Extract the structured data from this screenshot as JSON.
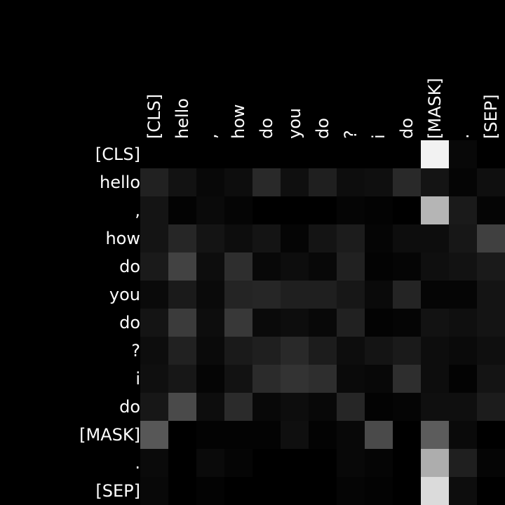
{
  "chart_data": {
    "type": "heatmap",
    "x_tokens": [
      "[CLS]",
      "hello",
      ",",
      "how",
      "do",
      "you",
      "do",
      "?",
      "i",
      "do",
      "[MASK]",
      ".",
      "[SEP]"
    ],
    "y_tokens": [
      "[CLS]",
      "hello",
      ",",
      "how",
      "do",
      "you",
      "do",
      "?",
      "i",
      "do",
      "[MASK]",
      ".",
      "[SEP]"
    ],
    "value_range": [
      0,
      1
    ],
    "colormap": "grayscale",
    "grid": false,
    "values": [
      [
        0.0,
        0.0,
        0.0,
        0.0,
        0.0,
        0.0,
        0.0,
        0.0,
        0.0,
        0.0,
        0.95,
        0.03,
        0.0
      ],
      [
        0.13,
        0.07,
        0.03,
        0.05,
        0.16,
        0.06,
        0.12,
        0.05,
        0.06,
        0.16,
        0.08,
        0.02,
        0.06
      ],
      [
        0.08,
        0.01,
        0.04,
        0.02,
        0.0,
        0.0,
        0.0,
        0.02,
        0.01,
        0.0,
        0.71,
        0.1,
        0.02
      ],
      [
        0.08,
        0.15,
        0.08,
        0.05,
        0.08,
        0.02,
        0.08,
        0.11,
        0.02,
        0.05,
        0.05,
        0.09,
        0.25
      ],
      [
        0.1,
        0.26,
        0.05,
        0.18,
        0.03,
        0.05,
        0.03,
        0.13,
        0.01,
        0.02,
        0.06,
        0.07,
        0.1
      ],
      [
        0.04,
        0.1,
        0.04,
        0.14,
        0.15,
        0.12,
        0.12,
        0.09,
        0.04,
        0.14,
        0.02,
        0.02,
        0.08
      ],
      [
        0.08,
        0.23,
        0.05,
        0.22,
        0.04,
        0.05,
        0.03,
        0.13,
        0.01,
        0.02,
        0.07,
        0.06,
        0.08
      ],
      [
        0.05,
        0.13,
        0.04,
        0.1,
        0.12,
        0.16,
        0.11,
        0.05,
        0.08,
        0.1,
        0.05,
        0.04,
        0.06
      ],
      [
        0.06,
        0.09,
        0.02,
        0.07,
        0.17,
        0.2,
        0.18,
        0.04,
        0.03,
        0.18,
        0.05,
        0.01,
        0.08
      ],
      [
        0.09,
        0.29,
        0.05,
        0.17,
        0.03,
        0.05,
        0.03,
        0.15,
        0.01,
        0.02,
        0.06,
        0.06,
        0.11
      ],
      [
        0.34,
        0.0,
        0.01,
        0.01,
        0.01,
        0.06,
        0.01,
        0.03,
        0.29,
        0.0,
        0.36,
        0.04,
        0.0
      ],
      [
        0.04,
        0.0,
        0.04,
        0.02,
        0.0,
        0.0,
        0.0,
        0.03,
        0.02,
        0.0,
        0.68,
        0.12,
        0.02
      ],
      [
        0.03,
        0.0,
        0.01,
        0.0,
        0.0,
        0.0,
        0.0,
        0.02,
        0.01,
        0.0,
        0.86,
        0.05,
        0.0
      ]
    ]
  }
}
